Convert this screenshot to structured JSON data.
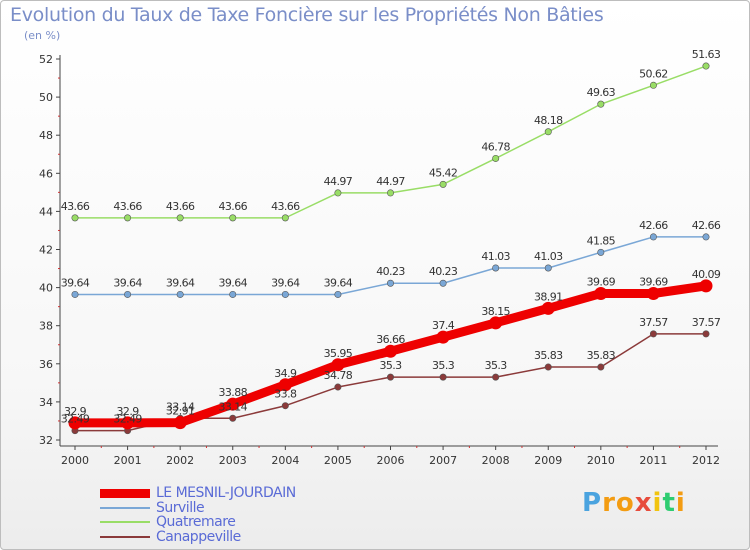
{
  "title": "Evolution du Taux de Taxe Foncière sur les Propriétés Non Bâties",
  "unit": "(en %)",
  "brand": {
    "text": "Proxiti",
    "letters": [
      {
        "ch": "P",
        "color": "#4aa3df"
      },
      {
        "ch": "r",
        "color": "#f39c12"
      },
      {
        "ch": "o",
        "color": "#f39c12"
      },
      {
        "ch": "x",
        "color": "#e74c3c"
      },
      {
        "ch": "i",
        "color": "#f1c40f"
      },
      {
        "ch": "t",
        "color": "#2ecc71"
      },
      {
        "ch": "i",
        "color": "#f39c12"
      }
    ]
  },
  "chart_data": {
    "type": "line",
    "title": "Evolution du Taux de Taxe Foncière sur les Propriétés Non Bâties",
    "ylabel": "(en %)",
    "x": [
      "2000",
      "2001",
      "2002",
      "2003",
      "2004",
      "2005",
      "2006",
      "2007",
      "2008",
      "2009",
      "2010",
      "2011",
      "2012"
    ],
    "ylim": [
      32,
      52
    ],
    "yticks": [
      32,
      34,
      36,
      38,
      40,
      42,
      44,
      46,
      48,
      50,
      52
    ],
    "grid": false,
    "legend_position": "bottom-left",
    "series": [
      {
        "name": "LE MESNIL-JOURDAIN",
        "color": "#ee0000",
        "emphasis": true,
        "values": [
          32.9,
          32.9,
          32.91,
          33.88,
          34.9,
          35.95,
          36.66,
          37.4,
          38.15,
          38.91,
          39.69,
          39.69,
          40.09
        ],
        "labels": [
          "32.9",
          "32.9",
          "32.91",
          "33.88",
          "34.9",
          "35.95",
          "36.66",
          "37.4",
          "38.15",
          "38.91",
          "39.69",
          "39.69",
          "40.09"
        ]
      },
      {
        "name": "Surville",
        "color": "#7aa7d6",
        "values": [
          39.64,
          39.64,
          39.64,
          39.64,
          39.64,
          39.64,
          40.23,
          40.23,
          41.03,
          41.03,
          41.85,
          42.66,
          42.66
        ],
        "labels": [
          "39.64",
          "39.64",
          "39.64",
          "39.64",
          "39.64",
          "39.64",
          "40.23",
          "40.23",
          "41.03",
          "41.03",
          "41.85",
          "42.66",
          "42.66"
        ]
      },
      {
        "name": "Quatremare",
        "color": "#99dd66",
        "values": [
          43.66,
          43.66,
          43.66,
          43.66,
          43.66,
          44.97,
          44.97,
          45.42,
          46.78,
          48.18,
          49.63,
          50.62,
          51.63
        ],
        "labels": [
          "43.66",
          "43.66",
          "43.66",
          "43.66",
          "43.66",
          "44.97",
          "44.97",
          "45.42",
          "46.78",
          "48.18",
          "49.63",
          "50.62",
          "51.63"
        ]
      },
      {
        "name": "Canappeville",
        "color": "#8b3a3a",
        "values": [
          32.49,
          32.49,
          33.14,
          33.14,
          33.8,
          34.78,
          35.3,
          35.3,
          35.3,
          35.83,
          35.83,
          37.57,
          37.57
        ],
        "labels": [
          "32.49",
          "32.49",
          "33.14",
          "33.14",
          "33.8",
          "34.78",
          "35.3",
          "35.3",
          "35.3",
          "35.83",
          "35.83",
          "37.57",
          "37.57"
        ]
      }
    ]
  }
}
